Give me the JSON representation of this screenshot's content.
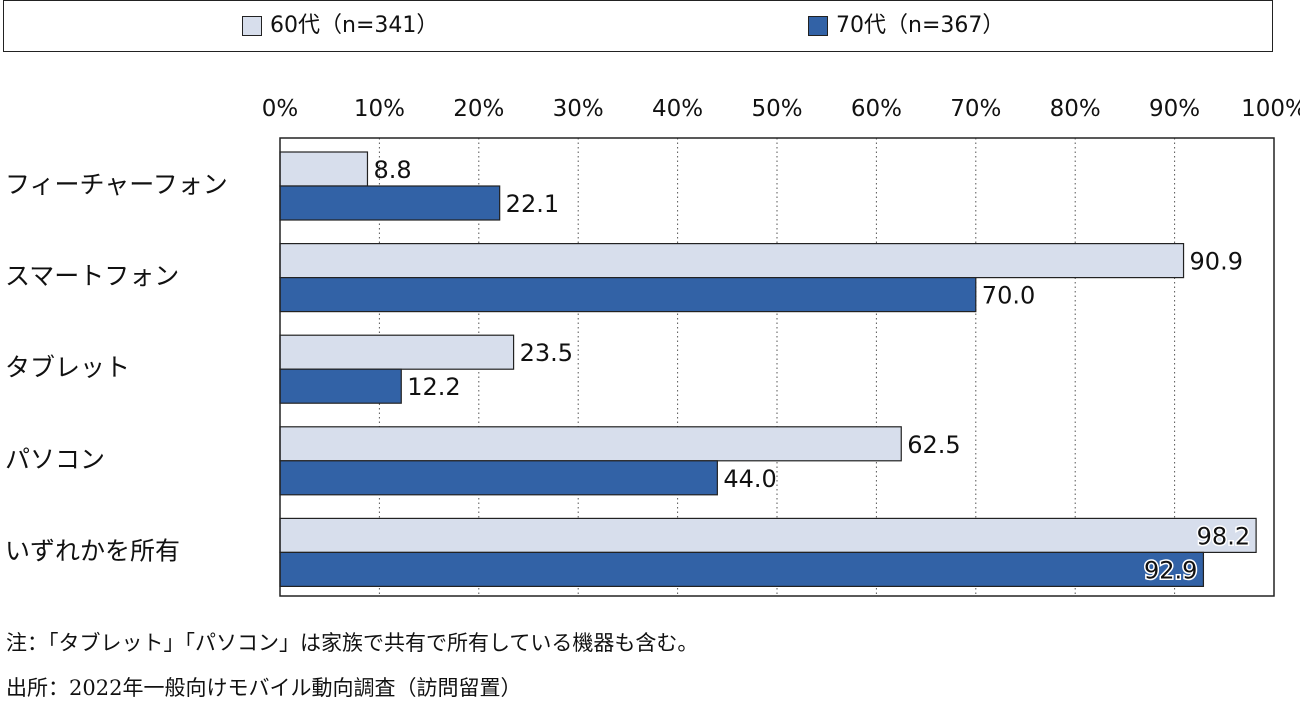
{
  "colors": {
    "series1": "#d7deec",
    "series2": "#3262a6",
    "axis": "#222222",
    "grid": "#555555"
  },
  "legend": [
    {
      "label": "60代（n=341）"
    },
    {
      "label": "70代（n=367）"
    }
  ],
  "chart_data": {
    "type": "bar",
    "orientation": "horizontal",
    "categories": [
      "フィーチャーフォン",
      "スマートフォン",
      "タブレット",
      "パソコン",
      "いずれかを所有"
    ],
    "series": [
      {
        "name": "60代（n=341）",
        "values": [
          8.8,
          90.9,
          23.5,
          62.5,
          98.2
        ],
        "labels": [
          "8.8",
          "90.9",
          "23.5",
          "62.5",
          "98.2"
        ]
      },
      {
        "name": "70代（n=367）",
        "values": [
          22.1,
          70.0,
          12.2,
          44.0,
          92.9
        ],
        "labels": [
          "22.1",
          "70.0",
          "12.2",
          "44.0",
          "92.9"
        ]
      }
    ],
    "xlim": [
      0,
      100
    ],
    "ticks": [
      "0%",
      "10%",
      "20%",
      "30%",
      "40%",
      "50%",
      "60%",
      "70%",
      "80%",
      "90%",
      "100%"
    ],
    "grid": "vertical dotted",
    "legend_position": "top"
  },
  "notes": {
    "note": "注：「タブレット」「パソコン」は家族で共有で所有している機器も含む。",
    "source": "出所：2022年一般向けモバイル動向調査（訪問留置）"
  }
}
